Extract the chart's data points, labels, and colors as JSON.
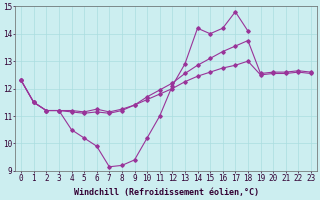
{
  "x_values": [
    0,
    1,
    2,
    3,
    4,
    5,
    6,
    7,
    8,
    9,
    10,
    11,
    12,
    13,
    14,
    15,
    16,
    17,
    18,
    19,
    20,
    21,
    22,
    23
  ],
  "line1_x": [
    0,
    1,
    2,
    3,
    4,
    5,
    6,
    7,
    8,
    9,
    10,
    11,
    12,
    13,
    14,
    15,
    16,
    17,
    18
  ],
  "line1_y": [
    12.3,
    11.5,
    11.2,
    11.2,
    10.5,
    10.2,
    9.9,
    9.15,
    9.2,
    9.4,
    10.2,
    11.0,
    12.1,
    12.9,
    14.2,
    14.0,
    14.2,
    14.8,
    14.1
  ],
  "line2_x": [
    0,
    1,
    2,
    3,
    4,
    5,
    6,
    7,
    8,
    9,
    10,
    11,
    12,
    13,
    14,
    15,
    16,
    17,
    18,
    19,
    20,
    21,
    22,
    23
  ],
  "line2_y": [
    12.3,
    11.5,
    11.2,
    11.2,
    11.15,
    11.1,
    11.15,
    11.1,
    11.2,
    11.4,
    11.7,
    11.95,
    12.2,
    12.55,
    12.85,
    13.1,
    13.35,
    13.55,
    13.75,
    12.55,
    12.6,
    12.6,
    12.65,
    12.6
  ],
  "line3_x": [
    0,
    1,
    2,
    3,
    4,
    5,
    6,
    7,
    8,
    9,
    10,
    11,
    12,
    13,
    14,
    15,
    16,
    17,
    18,
    19,
    20,
    21,
    22,
    23
  ],
  "line3_y": [
    12.3,
    11.5,
    11.2,
    11.2,
    11.2,
    11.15,
    11.25,
    11.15,
    11.25,
    11.4,
    11.6,
    11.8,
    12.0,
    12.25,
    12.45,
    12.6,
    12.75,
    12.85,
    13.0,
    12.5,
    12.55,
    12.55,
    12.6,
    12.55
  ],
  "background_color": "#cceef0",
  "grid_color": "#aadddf",
  "line_color": "#993399",
  "xlim": [
    -0.5,
    23.5
  ],
  "ylim": [
    9,
    15
  ],
  "yticks": [
    9,
    10,
    11,
    12,
    13,
    14,
    15
  ],
  "xtick_labels": [
    "0",
    "1",
    "2",
    "3",
    "4",
    "5",
    "6",
    "7",
    "8",
    "9",
    "10",
    "11",
    "12",
    "13",
    "14",
    "15",
    "16",
    "17",
    "18",
    "19",
    "20",
    "21",
    "22",
    "23"
  ],
  "xlabel": "Windchill (Refroidissement éolien,°C)",
  "xlabel_fontsize": 6.0,
  "tick_fontsize": 5.5,
  "marker": "D",
  "marker_size": 1.8,
  "linewidth": 0.8
}
